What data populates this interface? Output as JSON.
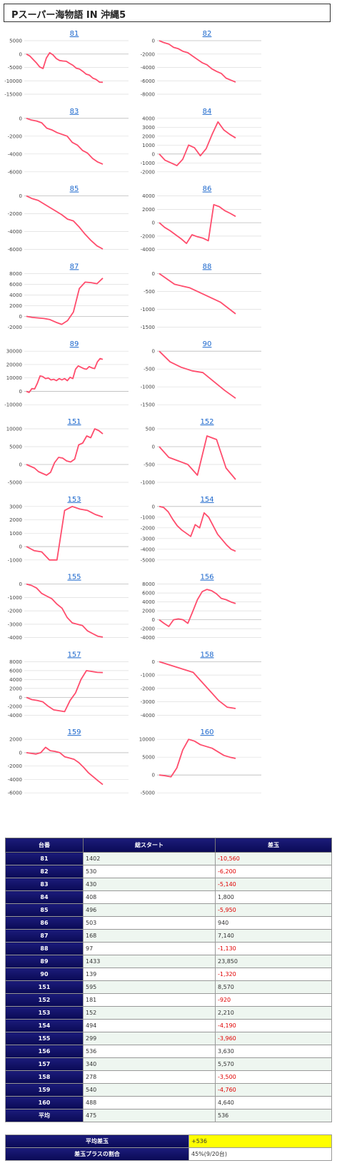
{
  "page_title": "Pスーパー海物語 IN 沖縄5",
  "chart_data": [
    {
      "type": "line",
      "title": "81",
      "yticks": [
        5000,
        0,
        -5000,
        -10000,
        -15000
      ],
      "ylim": [
        -15000,
        5000
      ],
      "values": [
        0,
        -700,
        -2000,
        -3300,
        -4800,
        -5400,
        -1500,
        500,
        -300,
        -1700,
        -2400,
        -2600,
        -2700,
        -3500,
        -4200,
        -5300,
        -5600,
        -6500,
        -7500,
        -7900,
        -9000,
        -9500,
        -10500,
        -10560
      ]
    },
    {
      "type": "line",
      "title": "82",
      "yticks": [
        0,
        -2000,
        -4000,
        -6000,
        -8000
      ],
      "ylim": [
        -8000,
        0
      ],
      "values": [
        0,
        -300,
        -500,
        -1000,
        -1200,
        -1600,
        -1800,
        -2300,
        -2800,
        -3300,
        -3600,
        -4200,
        -4600,
        -4900,
        -5600,
        -5900,
        -6200
      ]
    },
    {
      "type": "line",
      "title": "83",
      "yticks": [
        0,
        -2000,
        -4000,
        -6000
      ],
      "ylim": [
        -6000,
        0
      ],
      "values": [
        0,
        -200,
        -300,
        -500,
        -1100,
        -1300,
        -1600,
        -1800,
        -2000,
        -2700,
        -3000,
        -3600,
        -3900,
        -4500,
        -4900,
        -5140
      ]
    },
    {
      "type": "line",
      "title": "84",
      "yticks": [
        4000,
        3000,
        2000,
        1000,
        0,
        -1000,
        -2000
      ],
      "ylim": [
        -2000,
        4000
      ],
      "values": [
        0,
        -700,
        -1000,
        -1300,
        -600,
        1000,
        700,
        -200,
        600,
        2200,
        3600,
        2700,
        2200,
        1800
      ]
    },
    {
      "type": "line",
      "title": "85",
      "yticks": [
        0,
        -2000,
        -4000,
        -6000
      ],
      "ylim": [
        -6000,
        0
      ],
      "values": [
        0,
        -300,
        -500,
        -900,
        -1300,
        -1700,
        -2100,
        -2600,
        -2800,
        -3500,
        -4300,
        -5000,
        -5600,
        -5950
      ]
    },
    {
      "type": "line",
      "title": "86",
      "yticks": [
        4000,
        2000,
        0,
        -2000,
        -4000
      ],
      "ylim": [
        -4000,
        4000
      ],
      "values": [
        0,
        -700,
        -1200,
        -1800,
        -2400,
        -3100,
        -1800,
        -2100,
        -2300,
        -2700,
        2700,
        2400,
        1800,
        1400,
        940
      ]
    },
    {
      "type": "line",
      "title": "87",
      "yticks": [
        8000,
        6000,
        4000,
        2000,
        0,
        -2000
      ],
      "ylim": [
        -2000,
        8000
      ],
      "values": [
        0,
        -200,
        -300,
        -400,
        -600,
        -1100,
        -1500,
        -800,
        800,
        5200,
        6400,
        6300,
        6100,
        7140
      ]
    },
    {
      "type": "line",
      "title": "88",
      "yticks": [
        0,
        -500,
        -1000,
        -1500
      ],
      "ylim": [
        -1500,
        0
      ],
      "values": [
        0,
        -300,
        -400,
        -600,
        -800,
        -1130
      ]
    },
    {
      "type": "line",
      "title": "89",
      "yticks": [
        30000,
        20000,
        10000,
        0,
        -10000
      ],
      "ylim": [
        -10000,
        30000
      ],
      "values": [
        0,
        -800,
        2000,
        1800,
        6000,
        11500,
        11000,
        9500,
        10000,
        8500,
        9000,
        8000,
        9500,
        8500,
        9500,
        8000,
        10500,
        9500,
        16500,
        19000,
        18000,
        17000,
        16500,
        18500,
        17500,
        17000,
        22000,
        24500,
        23850
      ]
    },
    {
      "type": "line",
      "title": "90",
      "yticks": [
        0,
        -500,
        -1000,
        -1500
      ],
      "ylim": [
        -1500,
        0
      ],
      "values": [
        0,
        -300,
        -450,
        -550,
        -600,
        -850,
        -1100,
        -1320
      ]
    },
    {
      "type": "line",
      "title": "151",
      "yticks": [
        10000,
        5000,
        0,
        -5000
      ],
      "ylim": [
        -5000,
        10000
      ],
      "values": [
        0,
        -500,
        -1000,
        -2000,
        -2500,
        -3000,
        -2200,
        500,
        2000,
        1800,
        1000,
        700,
        1500,
        5500,
        6000,
        8000,
        7500,
        10000,
        9500,
        8570
      ]
    },
    {
      "type": "line",
      "title": "152",
      "yticks": [
        500,
        0,
        -500,
        -1000
      ],
      "ylim": [
        -1000,
        500
      ],
      "values": [
        0,
        -300,
        -400,
        -500,
        -800,
        300,
        200,
        -600,
        -920
      ]
    },
    {
      "type": "line",
      "title": "153",
      "yticks": [
        3000,
        2000,
        1000,
        0,
        -1000
      ],
      "ylim": [
        -1000,
        3000
      ],
      "values": [
        0,
        -300,
        -400,
        -1000,
        -1000,
        2700,
        3000,
        2800,
        2700,
        2400,
        2210
      ]
    },
    {
      "type": "line",
      "title": "154",
      "yticks": [
        0,
        -1000,
        -2000,
        -3000,
        -4000,
        -5000
      ],
      "ylim": [
        -5000,
        0
      ],
      "values": [
        0,
        -100,
        -500,
        -1200,
        -1800,
        -2200,
        -2500,
        -2800,
        -1700,
        -2000,
        -600,
        -1000,
        -1800,
        -2600,
        -3100,
        -3600,
        -4000,
        -4190
      ]
    },
    {
      "type": "line",
      "title": "155",
      "yticks": [
        0,
        -1000,
        -2000,
        -3000,
        -4000
      ],
      "ylim": [
        -4000,
        0
      ],
      "values": [
        0,
        -100,
        -300,
        -700,
        -900,
        -1100,
        -1500,
        -1800,
        -2500,
        -2900,
        -3000,
        -3100,
        -3500,
        -3700,
        -3900,
        -3960
      ]
    },
    {
      "type": "line",
      "title": "156",
      "yticks": [
        8000,
        6000,
        4000,
        2000,
        0,
        -2000,
        -4000
      ],
      "ylim": [
        -4000,
        8000
      ],
      "values": [
        0,
        -800,
        -1500,
        0,
        200,
        0,
        -800,
        1800,
        4500,
        6300,
        6800,
        6500,
        5800,
        4800,
        4500,
        4000,
        3630
      ]
    },
    {
      "type": "line",
      "title": "157",
      "yticks": [
        8000,
        6000,
        4000,
        2000,
        0,
        -2000,
        -4000
      ],
      "ylim": [
        -4000,
        8000
      ],
      "values": [
        0,
        -500,
        -700,
        -1000,
        -2000,
        -2800,
        -3000,
        -3200,
        -700,
        1000,
        4000,
        6000,
        5800,
        5600,
        5570
      ]
    },
    {
      "type": "line",
      "title": "158",
      "yticks": [
        0,
        -1000,
        -2000,
        -3000,
        -4000
      ],
      "ylim": [
        -4000,
        0
      ],
      "values": [
        0,
        -200,
        -400,
        -600,
        -800,
        -1500,
        -2200,
        -2900,
        -3400,
        -3500
      ]
    },
    {
      "type": "line",
      "title": "159",
      "yticks": [
        2000,
        0,
        -2000,
        -4000,
        -6000
      ],
      "ylim": [
        -6000,
        2000
      ],
      "values": [
        0,
        -100,
        -200,
        0,
        800,
        300,
        200,
        0,
        -600,
        -800,
        -1000,
        -1500,
        -2200,
        -3000,
        -3600,
        -4200,
        -4760
      ]
    },
    {
      "type": "line",
      "title": "160",
      "yticks": [
        10000,
        5000,
        0,
        -5000
      ],
      "ylim": [
        -5000,
        10000
      ],
      "values": [
        0,
        -200,
        -500,
        2000,
        7000,
        10000,
        9500,
        8500,
        8000,
        7500,
        6500,
        5500,
        5000,
        4640
      ]
    }
  ],
  "table": {
    "headers": [
      "台番",
      "総スタート",
      "差玉"
    ],
    "rows": [
      {
        "id": "81",
        "start": "1402",
        "diff": "-10,560",
        "neg": true
      },
      {
        "id": "82",
        "start": "530",
        "diff": "-6,200",
        "neg": true
      },
      {
        "id": "83",
        "start": "430",
        "diff": "-5,140",
        "neg": true
      },
      {
        "id": "84",
        "start": "408",
        "diff": "1,800",
        "neg": false
      },
      {
        "id": "85",
        "start": "496",
        "diff": "-5,950",
        "neg": true
      },
      {
        "id": "86",
        "start": "503",
        "diff": "940",
        "neg": false
      },
      {
        "id": "87",
        "start": "168",
        "diff": "7,140",
        "neg": false
      },
      {
        "id": "88",
        "start": "97",
        "diff": "-1,130",
        "neg": true
      },
      {
        "id": "89",
        "start": "1433",
        "diff": "23,850",
        "neg": false
      },
      {
        "id": "90",
        "start": "139",
        "diff": "-1,320",
        "neg": true
      },
      {
        "id": "151",
        "start": "595",
        "diff": "8,570",
        "neg": false
      },
      {
        "id": "152",
        "start": "181",
        "diff": "-920",
        "neg": true
      },
      {
        "id": "153",
        "start": "152",
        "diff": "2,210",
        "neg": false
      },
      {
        "id": "154",
        "start": "494",
        "diff": "-4,190",
        "neg": true
      },
      {
        "id": "155",
        "start": "299",
        "diff": "-3,960",
        "neg": true
      },
      {
        "id": "156",
        "start": "536",
        "diff": "3,630",
        "neg": false
      },
      {
        "id": "157",
        "start": "340",
        "diff": "5,570",
        "neg": false
      },
      {
        "id": "158",
        "start": "278",
        "diff": "-3,500",
        "neg": true
      },
      {
        "id": "159",
        "start": "540",
        "diff": "-4,760",
        "neg": true
      },
      {
        "id": "160",
        "start": "488",
        "diff": "4,640",
        "neg": false
      },
      {
        "id": "平均",
        "start": "475",
        "diff": "536",
        "neg": false
      }
    ]
  },
  "summary": {
    "avg_label": "平均差玉",
    "avg_value": "+536",
    "plus_label": "差玉プラスの割合",
    "plus_value": "45%(9/20台)"
  },
  "colors": {
    "series": "#ff4d6d",
    "header": "#0a0a55",
    "highlight": "#ffff00",
    "negative": "#e00000"
  }
}
